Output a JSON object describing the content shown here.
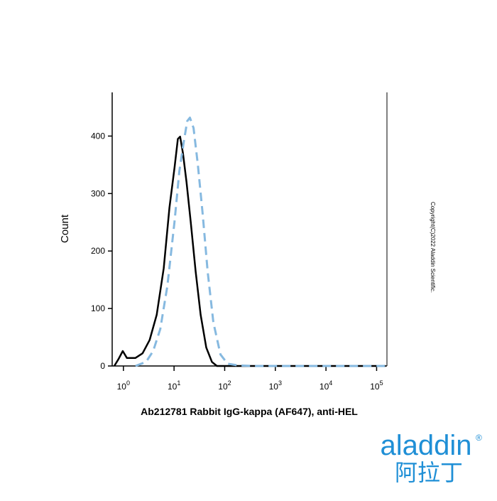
{
  "chart_data": {
    "type": "line",
    "xlabel": "Ab212781 Rabbit IgG-kappa (AF647), anti-HEL",
    "ylabel": "Count",
    "x_log": true,
    "xlim": [
      0.6,
      160000
    ],
    "ylim": [
      0,
      476
    ],
    "xticks": [
      {
        "value": 1,
        "label": "10",
        "exponent": "0"
      },
      {
        "value": 10,
        "label": "10",
        "exponent": "1"
      },
      {
        "value": 100,
        "label": "10",
        "exponent": "2"
      },
      {
        "value": 1000,
        "label": "10",
        "exponent": "3"
      },
      {
        "value": 10000,
        "label": "10",
        "exponent": "4"
      },
      {
        "value": 100000,
        "label": "10",
        "exponent": "5"
      }
    ],
    "yticks": [
      0,
      100,
      200,
      300,
      400
    ],
    "series": [
      {
        "color": "#000000",
        "dash": false,
        "x": [
          0.66,
          0.8,
          0.97,
          1.17,
          1.73,
          2.39,
          3.29,
          4.54,
          6.26,
          8.11,
          10.2,
          11.9,
          13.2,
          15.0,
          17.6,
          21.3,
          26.7,
          33.5,
          43.3,
          56.0,
          70.2,
          1000,
          100000,
          150000
        ],
        "values": [
          0,
          12,
          26,
          14,
          14,
          22,
          45,
          89,
          170,
          276,
          345,
          395,
          399,
          370,
          320,
          251,
          164,
          89,
          32,
          7,
          0,
          0,
          0,
          0
        ]
      },
      {
        "color": "#86b9e0",
        "dash": true,
        "x": [
          1.73,
          2.8,
          3.87,
          5.33,
          7.36,
          10.2,
          12.7,
          15.5,
          18.2,
          20.6,
          24.3,
          29.4,
          36.8,
          46.1,
          59.7,
          82.4,
          114,
          185,
          351,
          1000,
          100000,
          150000
        ],
        "values": [
          0,
          7,
          26,
          64,
          139,
          251,
          339,
          389,
          426,
          432,
          414,
          351,
          264,
          164,
          76,
          20,
          4,
          1,
          0,
          0,
          0,
          0
        ]
      }
    ]
  },
  "copyright": "Copyright(C)2022 Aladdin Scientific.",
  "logo": {
    "latin": "aladdin",
    "registered": "®",
    "chinese": "阿拉丁"
  }
}
